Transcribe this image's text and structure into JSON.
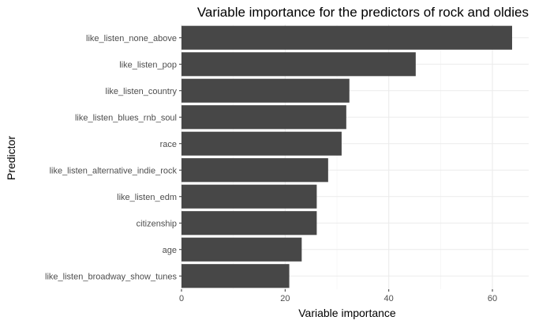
{
  "chart_data": {
    "type": "bar",
    "orientation": "horizontal",
    "title": "Variable importance for the predictors of rock and oldies",
    "xlabel": "Variable importance",
    "ylabel": "Predictor",
    "categories": [
      "like_listen_none_above",
      "like_listen_pop",
      "like_listen_country",
      "like_listen_blues_rnb_soul",
      "race",
      "like_listen_alternative_indie_rock",
      "like_listen_edm",
      "citizenship",
      "age",
      "like_listen_broadway_show_tunes"
    ],
    "values": [
      63.8,
      45.2,
      32.4,
      31.8,
      30.9,
      28.3,
      26.1,
      26.1,
      23.2,
      20.8
    ],
    "xlim": [
      0,
      67
    ],
    "xticks": [
      0,
      20,
      40,
      60
    ],
    "grid": true,
    "bar_color": "#474747"
  }
}
